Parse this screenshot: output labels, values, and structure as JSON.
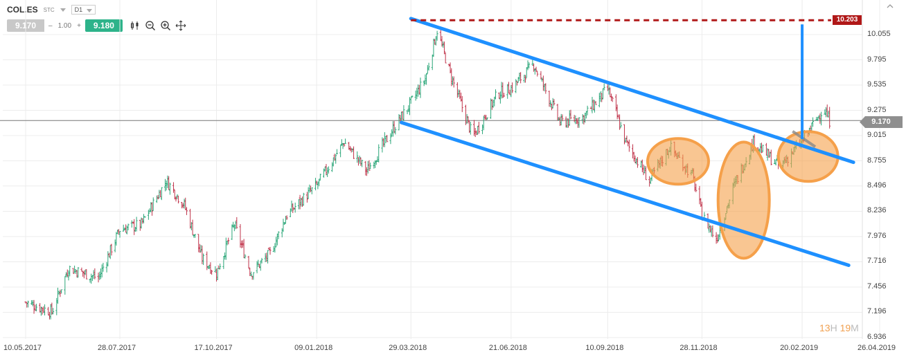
{
  "header": {
    "symbol": "COL.ES",
    "type": "STC",
    "timeframe": "D1",
    "bid": "9.170",
    "quantity": "1.00",
    "minus": "–",
    "plus": "+",
    "ask": "9.180",
    "tools": [
      "candlestick-icon",
      "zoom-out-icon",
      "zoom-in-icon",
      "crosshair-icon"
    ]
  },
  "timer": {
    "hours": "13",
    "h_unit": "H",
    "minutes": "19",
    "m_unit": "M"
  },
  "colors": {
    "up": "#2aa678",
    "down": "#c0334a",
    "trendline": "#1e90ff",
    "highlight": "#f5a04a",
    "resistance": "#b01818"
  },
  "chart_data": {
    "type": "candlestick",
    "y_ticks": [
      "10.055",
      "9.795",
      "9.535",
      "9.275",
      "9.015",
      "8.755",
      "8.496",
      "8.236",
      "7.976",
      "7.716",
      "7.456",
      "7.196",
      "6.936"
    ],
    "x_ticks": [
      "10.05.2017",
      "28.07.2017",
      "17.10.2017",
      "09.01.2018",
      "29.03.2018",
      "21.06.2018",
      "10.09.2018",
      "28.11.2018",
      "20.02.2019",
      "26.04.2019"
    ],
    "ylim": [
      6.936,
      10.25
    ],
    "current_price": "9.170",
    "resistance": "10.203",
    "price_path": [
      [
        "10.05.2017",
        7.3
      ],
      [
        "01.06.2017",
        7.2
      ],
      [
        "15.06.2017",
        7.65
      ],
      [
        "10.07.2017",
        7.55
      ],
      [
        "28.07.2017",
        8.05
      ],
      [
        "15.08.2017",
        8.1
      ],
      [
        "05.09.2017",
        8.55
      ],
      [
        "20.09.2017",
        8.3
      ],
      [
        "05.10.2017",
        7.75
      ],
      [
        "17.10.2017",
        7.6
      ],
      [
        "01.11.2017",
        8.1
      ],
      [
        "15.11.2017",
        7.6
      ],
      [
        "01.12.2017",
        7.8
      ],
      [
        "15.12.2017",
        8.2
      ],
      [
        "09.01.2018",
        8.5
      ],
      [
        "01.02.2018",
        8.95
      ],
      [
        "20.02.2018",
        8.65
      ],
      [
        "15.03.2018",
        9.1
      ],
      [
        "29.03.2018",
        9.35
      ],
      [
        "10.04.2018",
        9.6
      ],
      [
        "20.04.2018",
        10.1
      ],
      [
        "01.05.2018",
        9.65
      ],
      [
        "20.05.2018",
        9.0
      ],
      [
        "10.06.2018",
        9.45
      ],
      [
        "21.06.2018",
        9.5
      ],
      [
        "10.07.2018",
        9.75
      ],
      [
        "01.08.2018",
        9.15
      ],
      [
        "20.08.2018",
        9.2
      ],
      [
        "10.09.2018",
        9.5
      ],
      [
        "25.09.2018",
        8.95
      ],
      [
        "15.10.2018",
        8.55
      ],
      [
        "01.11.2018",
        8.9
      ],
      [
        "20.11.2018",
        8.6
      ],
      [
        "28.11.2018",
        8.2
      ],
      [
        "10.12.2018",
        7.95
      ],
      [
        "25.12.2018",
        8.5
      ],
      [
        "10.01.2019",
        8.95
      ],
      [
        "01.02.2019",
        8.7
      ],
      [
        "20.02.2019",
        8.95
      ],
      [
        "10.03.2019",
        9.3
      ],
      [
        "15.03.2019",
        9.17
      ]
    ],
    "annotations": {
      "upper_channel": [
        [
          "29.03.2018",
          10.22
        ],
        [
          "04.04.2019",
          8.74
        ]
      ],
      "lower_channel": [
        [
          "21.03.2018",
          9.15
        ],
        [
          "31.03.2019",
          7.68
        ]
      ],
      "resistance_level": 10.203,
      "target_projection": [
        [
          "20.02.2019",
          8.98
        ],
        [
          "20.02.2019",
          10.16
        ]
      ],
      "breakout_segment": [
        [
          "12.02.2019",
          9.06
        ],
        [
          "03.03.2019",
          8.9
        ]
      ],
      "highlight_ellipses": [
        {
          "center": [
            "08.11.2018",
            8.75
          ]
        },
        {
          "center": [
            "02.01.2019",
            8.35
          ]
        },
        {
          "center": [
            "25.02.2019",
            8.8
          ]
        }
      ]
    }
  }
}
